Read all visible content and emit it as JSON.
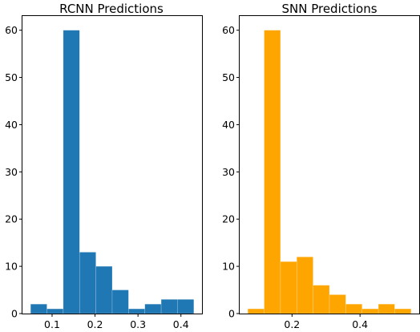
{
  "chart_data": [
    {
      "type": "bar",
      "title": "RCNN Predictions",
      "color": "#1f77b4",
      "bin_edges": [
        0.05,
        0.088,
        0.126,
        0.164,
        0.202,
        0.24,
        0.278,
        0.316,
        0.354,
        0.392,
        0.43
      ],
      "values": [
        2,
        1,
        60,
        13,
        10,
        5,
        1,
        2,
        3,
        3
      ],
      "xlim": [
        0.031,
        0.449
      ],
      "ylim": [
        0,
        63
      ],
      "xticks": [
        0.1,
        0.2,
        0.3,
        0.4
      ],
      "xtick_labels": [
        "0.1",
        "0.2",
        "0.3",
        "0.4"
      ],
      "yticks": [
        0,
        10,
        20,
        30,
        40,
        50,
        60
      ],
      "ytick_labels": [
        "0",
        "10",
        "20",
        "30",
        "40",
        "50",
        "60"
      ]
    },
    {
      "type": "bar",
      "title": "SNN Predictions",
      "color": "#ffa500",
      "bin_edges": [
        0.07,
        0.118,
        0.166,
        0.214,
        0.262,
        0.31,
        0.358,
        0.406,
        0.454,
        0.502,
        0.55
      ],
      "values": [
        1,
        60,
        11,
        12,
        6,
        4,
        2,
        1,
        2,
        1
      ],
      "xlim": [
        0.046,
        0.574
      ],
      "ylim": [
        0,
        63
      ],
      "xticks": [
        0.2,
        0.4
      ],
      "xtick_labels": [
        "0.2",
        "0.4"
      ],
      "yticks": [
        0,
        10,
        20,
        30,
        40,
        50,
        60
      ],
      "ytick_labels": [
        "0",
        "10",
        "20",
        "30",
        "40",
        "50",
        "60"
      ]
    }
  ]
}
